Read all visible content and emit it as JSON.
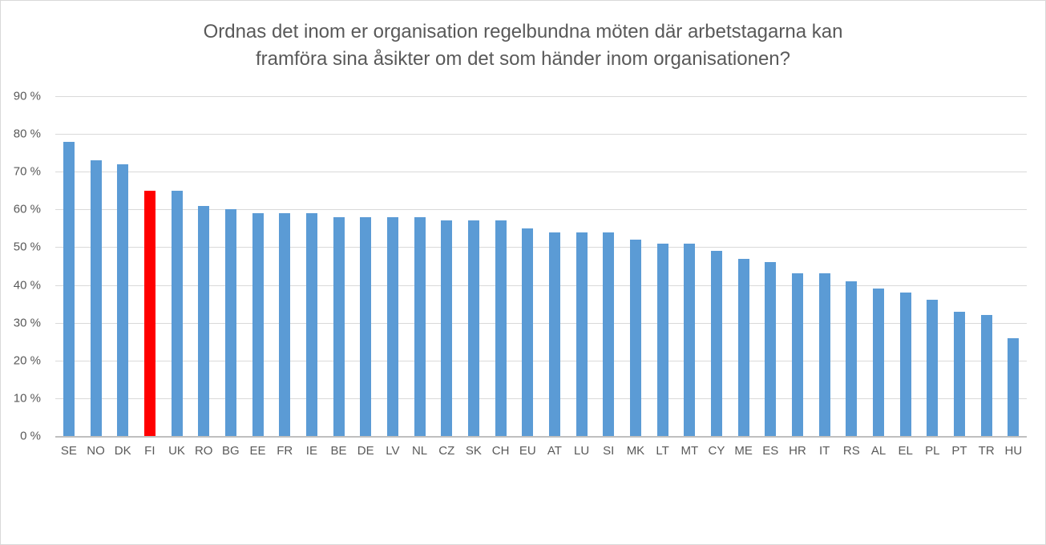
{
  "chart_data": {
    "type": "bar",
    "title": "Ordnas det inom er organisation regelbundna möten där arbetstagarna kan framföra sina åsikter om det som händer inom organisationen?",
    "title_lines": [
      "Ordnas det inom er organisation regelbundna möten där arbetstagarna kan",
      "framföra sina åsikter om det som händer inom organisationen?"
    ],
    "categories": [
      "SE",
      "NO",
      "DK",
      "FI",
      "UK",
      "RO",
      "BG",
      "EE",
      "FR",
      "IE",
      "BE",
      "DE",
      "LV",
      "NL",
      "CZ",
      "SK",
      "CH",
      "EU",
      "AT",
      "LU",
      "SI",
      "MK",
      "LT",
      "MT",
      "CY",
      "ME",
      "ES",
      "HR",
      "IT",
      "RS",
      "AL",
      "EL",
      "PL",
      "PT",
      "TR",
      "HU"
    ],
    "values": [
      78,
      73,
      72,
      65,
      65,
      61,
      60,
      59,
      59,
      59,
      58,
      58,
      58,
      58,
      57,
      57,
      57,
      55,
      54,
      54,
      54,
      52,
      51,
      51,
      49,
      47,
      46,
      43,
      43,
      41,
      39,
      38,
      36,
      33,
      32,
      26
    ],
    "highlight_category": "FI",
    "bar_color": "#5b9bd5",
    "highlight_color": "#ff0000",
    "xlabel": "",
    "ylabel": "",
    "ylim": [
      0,
      90
    ],
    "ytick_step": 10,
    "ytick_labels": [
      "0 %",
      "10 %",
      "20 %",
      "30 %",
      "40 %",
      "50 %",
      "60 %",
      "70 %",
      "80 %",
      "90 %"
    ],
    "grid": true,
    "legend": "none",
    "gridline_color": "#d9d9d9",
    "axis_line_color": "#bfbfbf",
    "text_color": "#595959",
    "frame_border_color": "#d9d9d9",
    "background_color": "#ffffff"
  }
}
